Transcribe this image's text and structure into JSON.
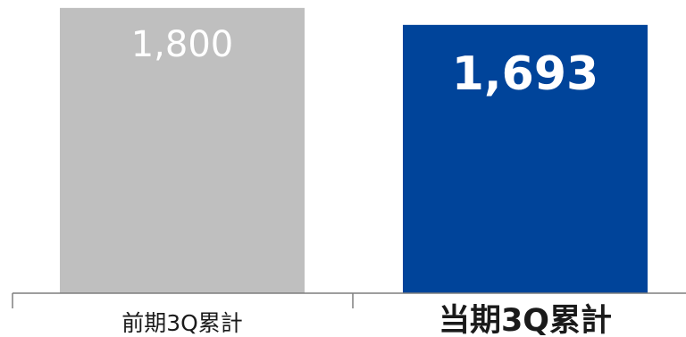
{
  "chart_data": {
    "type": "bar",
    "categories": [
      "前期3Q累計",
      "当期3Q累計"
    ],
    "values": [
      1800,
      1693
    ],
    "value_labels": [
      "1,800",
      "1,693"
    ],
    "colors": [
      "#bfbfbf",
      "#00449a"
    ],
    "ylim": [
      0,
      1850
    ],
    "grid": false,
    "legend": "none"
  }
}
